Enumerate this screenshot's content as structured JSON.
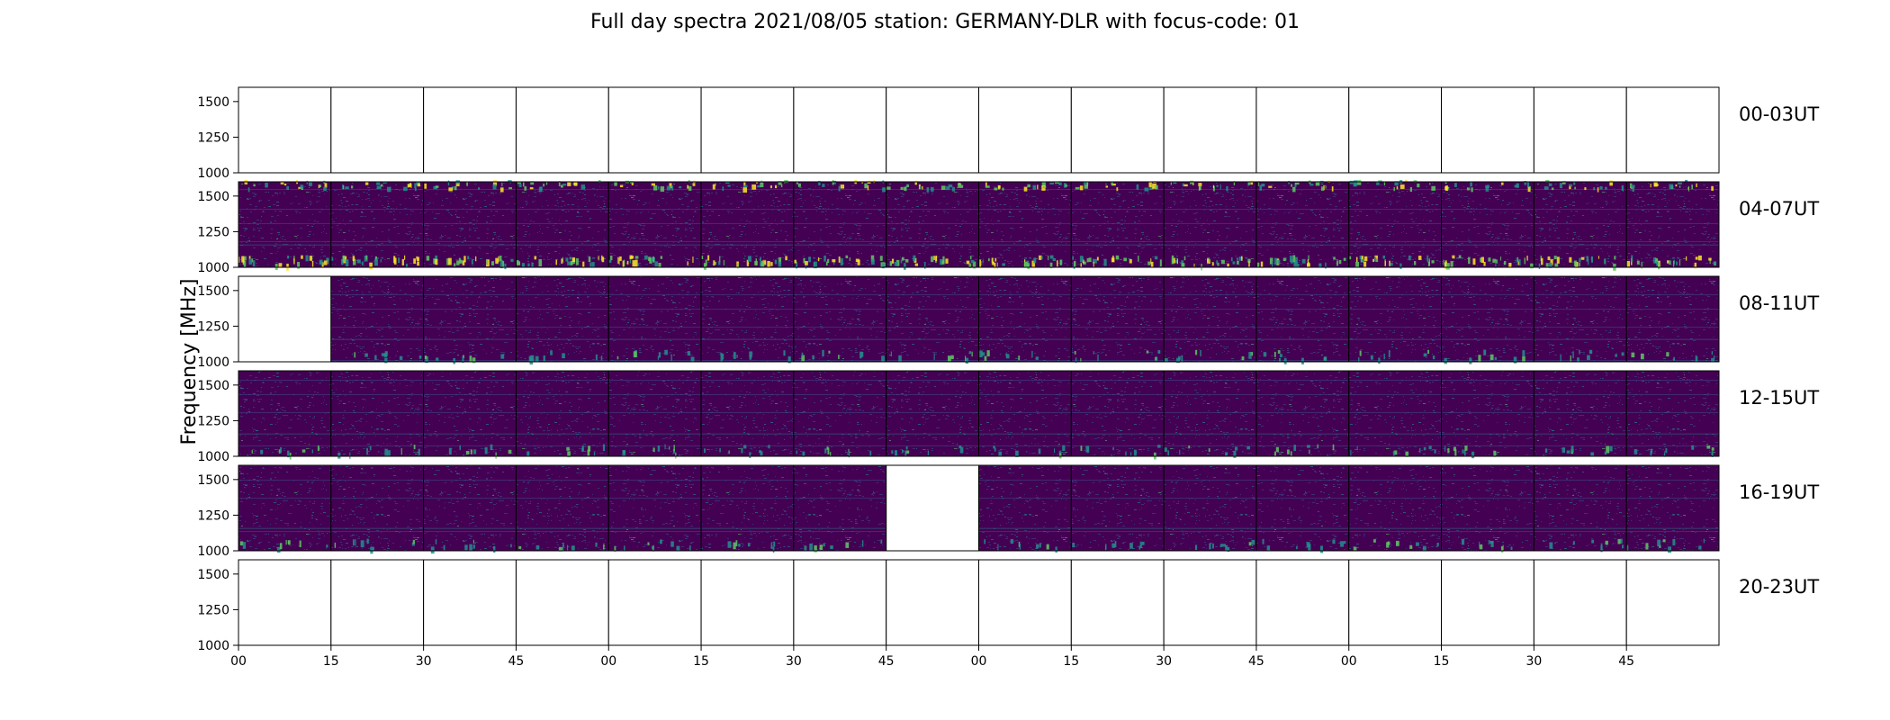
{
  "chart_data": {
    "type": "heatmap",
    "title": "Full day spectra 2021/08/05 station: GERMANY-DLR with focus-code: 01",
    "ylabel": "Frequency [MHz]",
    "xlabel": "",
    "ylim": [
      1000,
      1600
    ],
    "y_ticks": [
      "1500",
      "1250",
      "1000"
    ],
    "x_ticks": [
      "00",
      "15",
      "30",
      "45",
      "00",
      "15",
      "30",
      "45",
      "00",
      "15",
      "30",
      "45",
      "00",
      "15",
      "30",
      "45"
    ],
    "columns_per_row": 16,
    "colormap": [
      "#440154",
      "#3b528b",
      "#21918c",
      "#5ec962",
      "#fde725"
    ],
    "rows": [
      {
        "label": "00-03UT",
        "missing": [
          0,
          1,
          2,
          3,
          4,
          5,
          6,
          7,
          8,
          9,
          10,
          11,
          12,
          13,
          14,
          15
        ]
      },
      {
        "label": "04-07UT",
        "missing": []
      },
      {
        "label": "08-11UT",
        "missing": [
          0
        ]
      },
      {
        "label": "12-15UT",
        "missing": []
      },
      {
        "label": "16-19UT",
        "missing": [
          7
        ]
      },
      {
        "label": "20-23UT",
        "missing": [
          0,
          1,
          2,
          3,
          4,
          5,
          6,
          7,
          8,
          9,
          10,
          11,
          12,
          13,
          14,
          15
        ]
      }
    ]
  }
}
